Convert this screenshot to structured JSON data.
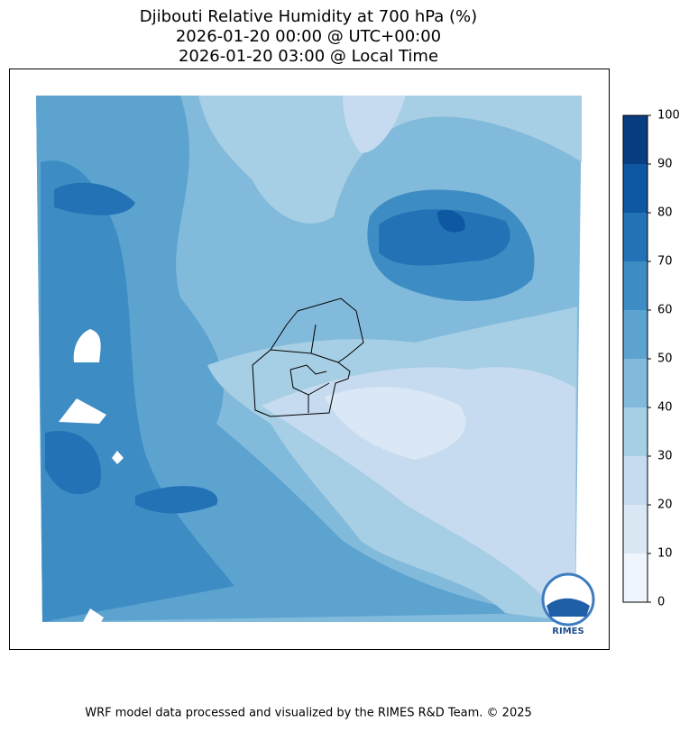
{
  "header": {
    "title_lines": [
      "Djibouti Relative Humidity at 700 hPa (%)",
      "2026-01-20 00:00 @ UTC+00:00",
      "2026-01-20 03:00 @ Local Time"
    ]
  },
  "colorbar": {
    "ticks": [
      0,
      10,
      20,
      30,
      40,
      50,
      60,
      70,
      80,
      90,
      100
    ],
    "colors": [
      "#eef5fc",
      "#dae8f5",
      "#c6dbef",
      "#a6cee4",
      "#82badb",
      "#5ca3d0",
      "#3d8dc4",
      "#2272b5",
      "#0d58a1",
      "#083d7f"
    ]
  },
  "logo": {
    "text": "RIMES"
  },
  "footer": {
    "text": "WRF model data processed and visualized by the RIMES R&D Team. © 2025"
  }
}
